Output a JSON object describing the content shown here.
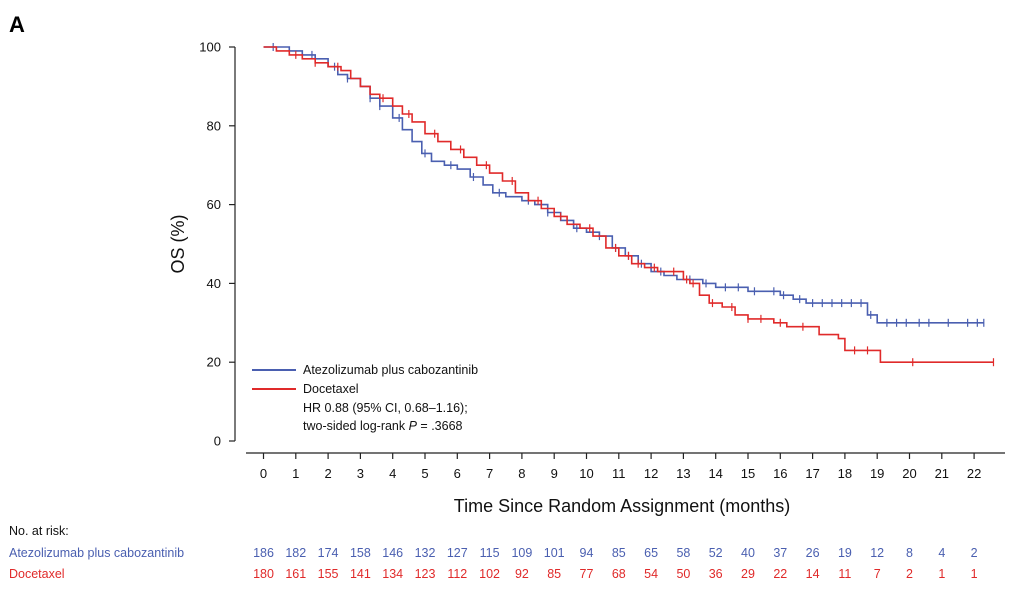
{
  "panel_label": "A",
  "chart_data": {
    "type": "line",
    "title": "",
    "xlabel": "Time Since Random Assignment (months)",
    "ylabel": "OS (%)",
    "xlim": [
      0,
      22.6
    ],
    "ylim": [
      0,
      100
    ],
    "x_ticks": [
      0,
      1,
      2,
      3,
      4,
      5,
      6,
      7,
      8,
      9,
      10,
      11,
      12,
      13,
      14,
      15,
      16,
      17,
      18,
      19,
      20,
      21,
      22
    ],
    "y_ticks": [
      0,
      20,
      40,
      60,
      80,
      100
    ],
    "legend_position": "bottom-left",
    "annotation_line1": "HR 0.88 (95% CI, 0.68–1.16);",
    "annotation_line2_prefix": "two-sided log-rank ",
    "annotation_line2_p": "P",
    "annotation_line2_suffix": " = .3668",
    "series": [
      {
        "name": "Atezolizumab plus cabozantinib",
        "color": "#4a5fb0",
        "points": [
          [
            0,
            100
          ],
          [
            0.3,
            100
          ],
          [
            0.8,
            99
          ],
          [
            1.2,
            98
          ],
          [
            1.6,
            97
          ],
          [
            2.0,
            95
          ],
          [
            2.3,
            93
          ],
          [
            2.6,
            92
          ],
          [
            3.0,
            90
          ],
          [
            3.3,
            87
          ],
          [
            3.6,
            85
          ],
          [
            4.0,
            82
          ],
          [
            4.3,
            79
          ],
          [
            4.6,
            76
          ],
          [
            4.9,
            73
          ],
          [
            5.2,
            71
          ],
          [
            5.6,
            70
          ],
          [
            6.0,
            69
          ],
          [
            6.4,
            67
          ],
          [
            6.8,
            65
          ],
          [
            7.1,
            63
          ],
          [
            7.5,
            62
          ],
          [
            8.0,
            61
          ],
          [
            8.4,
            60
          ],
          [
            8.8,
            58
          ],
          [
            9.2,
            56
          ],
          [
            9.6,
            54
          ],
          [
            10.0,
            53
          ],
          [
            10.4,
            52
          ],
          [
            10.8,
            49
          ],
          [
            11.2,
            47
          ],
          [
            11.6,
            45
          ],
          [
            12.0,
            43
          ],
          [
            12.4,
            42
          ],
          [
            12.8,
            41
          ],
          [
            13.2,
            41
          ],
          [
            13.6,
            40
          ],
          [
            14.0,
            39
          ],
          [
            14.5,
            39
          ],
          [
            15.0,
            38
          ],
          [
            15.5,
            38
          ],
          [
            16.0,
            37
          ],
          [
            16.4,
            36
          ],
          [
            16.8,
            35
          ],
          [
            17.3,
            35
          ],
          [
            17.8,
            35
          ],
          [
            18.4,
            35
          ],
          [
            18.7,
            32
          ],
          [
            19.0,
            30
          ],
          [
            20.0,
            30
          ],
          [
            21.0,
            30
          ],
          [
            22.0,
            30
          ],
          [
            22.3,
            30
          ]
        ],
        "censor_x": [
          0.3,
          1.5,
          2.2,
          2.6,
          3.3,
          3.6,
          4.2,
          5.0,
          5.8,
          6.5,
          7.3,
          8.2,
          8.8,
          9.7,
          10.4,
          10.9,
          11.3,
          11.7,
          12.3,
          13.2,
          13.7,
          14.3,
          14.7,
          15.2,
          15.8,
          16.1,
          16.6,
          17.0,
          17.3,
          17.6,
          17.9,
          18.2,
          18.5,
          18.8,
          19.3,
          19.6,
          19.9,
          20.3,
          20.6,
          21.2,
          21.8,
          22.1,
          22.3
        ],
        "at_risk": [
          186,
          182,
          174,
          158,
          146,
          132,
          127,
          115,
          109,
          101,
          94,
          85,
          65,
          58,
          52,
          40,
          37,
          26,
          19,
          12,
          8,
          4,
          2
        ]
      },
      {
        "name": "Docetaxel",
        "color": "#e02a2a",
        "points": [
          [
            0,
            100
          ],
          [
            0.4,
            99
          ],
          [
            0.8,
            98
          ],
          [
            1.2,
            97
          ],
          [
            1.6,
            96
          ],
          [
            2.0,
            95
          ],
          [
            2.4,
            94
          ],
          [
            2.7,
            92
          ],
          [
            3.0,
            90
          ],
          [
            3.3,
            88
          ],
          [
            3.6,
            87
          ],
          [
            4.0,
            85
          ],
          [
            4.3,
            83
          ],
          [
            4.6,
            81
          ],
          [
            5.0,
            78
          ],
          [
            5.4,
            76
          ],
          [
            5.8,
            74
          ],
          [
            6.2,
            72
          ],
          [
            6.6,
            70
          ],
          [
            7.0,
            68
          ],
          [
            7.4,
            66
          ],
          [
            7.8,
            63
          ],
          [
            8.2,
            61
          ],
          [
            8.6,
            59
          ],
          [
            9.0,
            57
          ],
          [
            9.4,
            55
          ],
          [
            9.8,
            54
          ],
          [
            10.2,
            52
          ],
          [
            10.6,
            49
          ],
          [
            11.0,
            47
          ],
          [
            11.4,
            45
          ],
          [
            11.8,
            44
          ],
          [
            12.2,
            43
          ],
          [
            12.6,
            43
          ],
          [
            13.0,
            41
          ],
          [
            13.2,
            40
          ],
          [
            13.5,
            37
          ],
          [
            13.8,
            35
          ],
          [
            14.2,
            34
          ],
          [
            14.6,
            32
          ],
          [
            15.0,
            31
          ],
          [
            15.5,
            31
          ],
          [
            15.8,
            30
          ],
          [
            16.2,
            29
          ],
          [
            16.8,
            29
          ],
          [
            17.2,
            27
          ],
          [
            17.8,
            26
          ],
          [
            18.0,
            23
          ],
          [
            18.5,
            23
          ],
          [
            19.0,
            23
          ],
          [
            19.1,
            20
          ],
          [
            20.0,
            20
          ],
          [
            21.0,
            20
          ],
          [
            22.0,
            20
          ],
          [
            22.6,
            20
          ]
        ],
        "censor_x": [
          1.0,
          1.6,
          2.3,
          3.7,
          4.5,
          5.3,
          6.1,
          6.9,
          7.7,
          8.5,
          9.2,
          10.1,
          10.9,
          11.3,
          11.6,
          12.1,
          12.7,
          13.1,
          13.3,
          13.9,
          14.5,
          15.0,
          15.4,
          16.0,
          16.7,
          18.3,
          18.7,
          20.1,
          22.6
        ],
        "at_risk": [
          180,
          161,
          155,
          141,
          134,
          123,
          112,
          102,
          92,
          85,
          77,
          68,
          54,
          50,
          36,
          29,
          22,
          14,
          11,
          7,
          2,
          1,
          1
        ]
      }
    ]
  },
  "risk_table": {
    "header": "No. at risk:",
    "rows": [
      {
        "label": "Atezolizumab plus cabozantinib",
        "values": [
          "186",
          "182",
          "174",
          "158",
          "146",
          "132",
          "127",
          "115",
          "109",
          "101",
          "94",
          "85",
          "65",
          "58",
          "52",
          "40",
          "37",
          "26",
          "19",
          "12",
          "8",
          "4",
          "2"
        ]
      },
      {
        "label": "Docetaxel",
        "values": [
          "180",
          "161",
          "155",
          "141",
          "134",
          "123",
          "112",
          "102",
          "92",
          "85",
          "77",
          "68",
          "54",
          "50",
          "36",
          "29",
          "22",
          "14",
          "11",
          "7",
          "2",
          "1",
          "1"
        ]
      }
    ]
  }
}
